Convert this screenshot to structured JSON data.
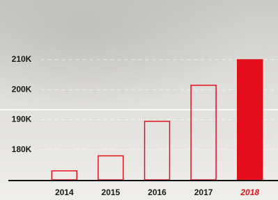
{
  "chart_data": {
    "type": "bar",
    "categories": [
      "2014",
      "2015",
      "2016",
      "2017",
      "2018"
    ],
    "values": [
      173000,
      178000,
      189500,
      201500,
      210000
    ],
    "color": "#e3101b",
    "bar_fill": [
      "none",
      "none",
      "none",
      "none",
      "#e3101b"
    ],
    "label_colors": [
      "#1a1a1a",
      "#1a1a1a",
      "#1a1a1a",
      "#1a1a1a",
      "#e3101b"
    ],
    "ylim": [
      170000,
      210000
    ],
    "yticks": [
      {
        "value": 180000,
        "label": "180K"
      },
      {
        "value": 190000,
        "label": "190K"
      },
      {
        "value": 200000,
        "label": "200K"
      },
      {
        "value": 210000,
        "label": "210K"
      }
    ],
    "grid": true
  }
}
